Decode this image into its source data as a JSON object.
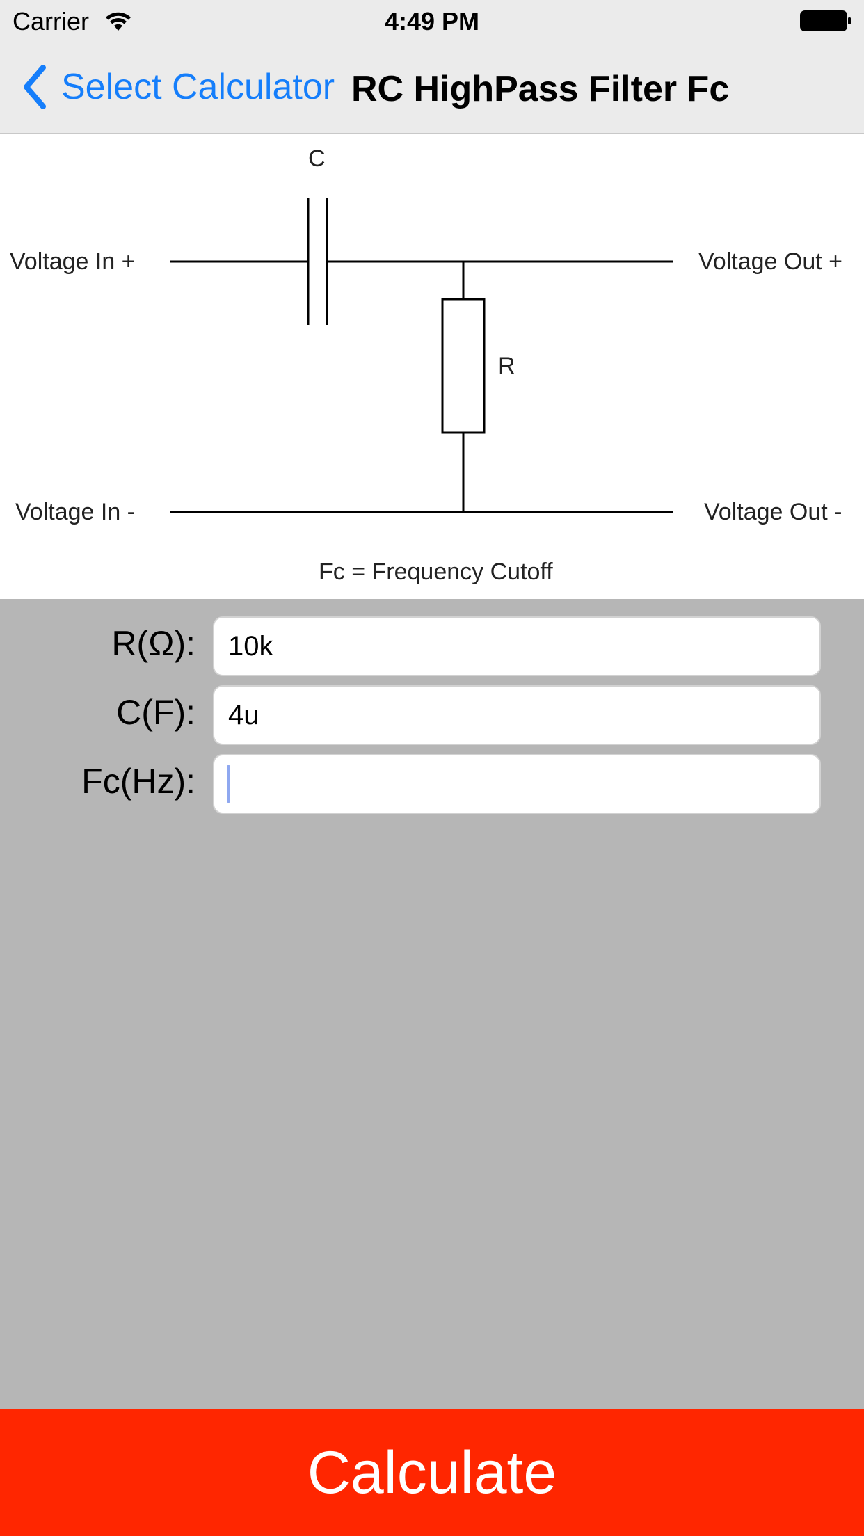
{
  "status_bar": {
    "carrier": "Carrier",
    "time": "4:49 PM"
  },
  "nav": {
    "back_label": "Select Calculator",
    "title": "RC HighPass Filter Fc",
    "accent_color": "#157efb"
  },
  "diagram": {
    "capacitor_label": "C",
    "resistor_label": "R",
    "voltage_in_plus": "Voltage In +",
    "voltage_out_plus": "Voltage Out +",
    "voltage_in_minus": "Voltage In -",
    "voltage_out_minus": "Voltage Out -",
    "caption": "Fc = Frequency Cutoff"
  },
  "form": {
    "resistance": {
      "label": "R(Ω):",
      "value": "10k"
    },
    "capacitance": {
      "label": "C(F):",
      "value": "4u"
    },
    "frequency": {
      "label": "Fc(Hz):",
      "value": ""
    }
  },
  "calculate_button": {
    "label": "Calculate",
    "color": "#ff2600"
  }
}
